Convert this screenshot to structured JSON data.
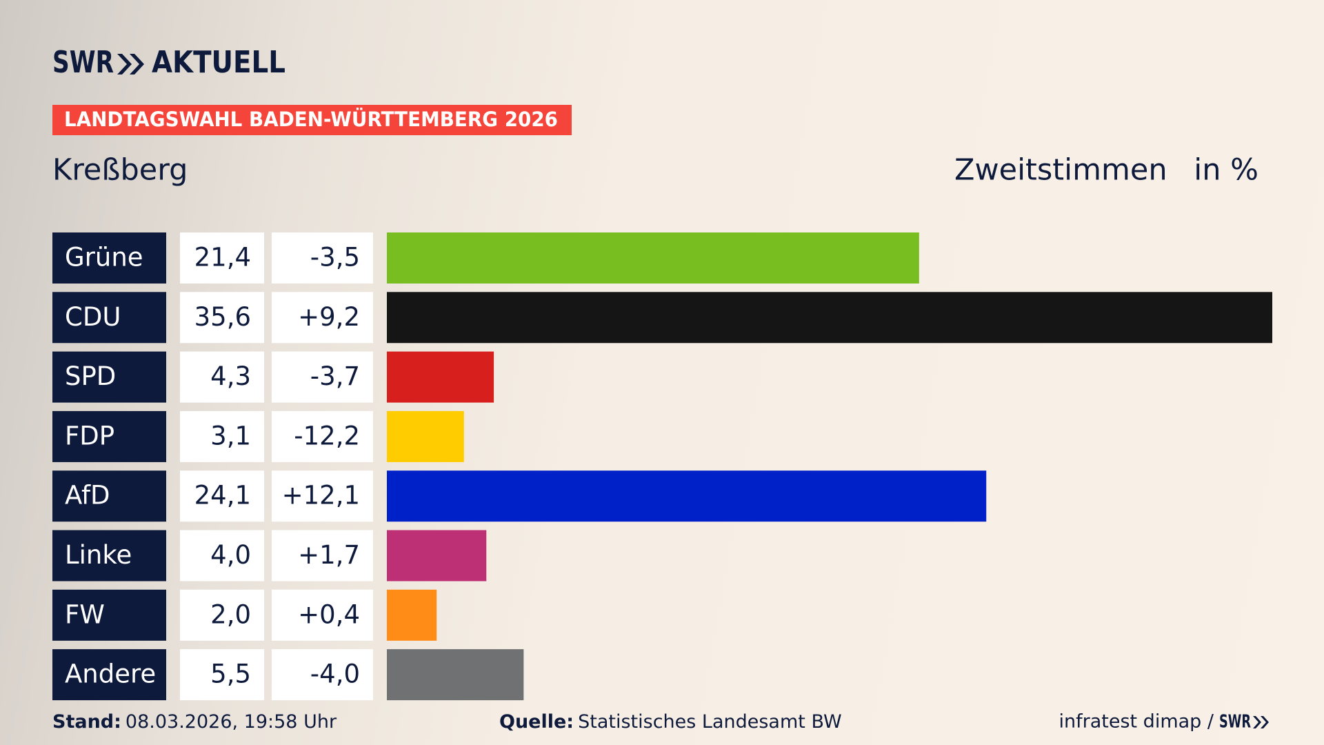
{
  "chart_data": {
    "type": "bar",
    "brand": "SWR",
    "brand_sub": "AKTUELL",
    "banner": "LANDTAGSWAHL BADEN-WÜRTTEMBERG 2026",
    "title": "Kreßberg",
    "subtitle": "Zweitstimmen",
    "unit": "in %",
    "categories": [
      "Grüne",
      "CDU",
      "SPD",
      "FDP",
      "AfD",
      "Linke",
      "FW",
      "Andere"
    ],
    "values": [
      21.4,
      35.6,
      4.3,
      3.1,
      24.1,
      4.0,
      2.0,
      5.5
    ],
    "value_labels": [
      "21,4",
      "35,6",
      "4,3",
      "3,1",
      "24,1",
      "4,0",
      "2,0",
      "5,5"
    ],
    "changes": [
      "-3,5",
      "+9,2",
      "-3,7",
      "-12,2",
      "+12,1",
      "+1,7",
      "+0,4",
      "-4,0"
    ],
    "colors": [
      "#78be20",
      "#151515",
      "#d71f1d",
      "#ffcc00",
      "#0021c8",
      "#be3075",
      "#ff8c17",
      "#707173"
    ],
    "stand_label": "Stand:",
    "stand": "08.03.2026, 19:58 Uhr",
    "source_label": "Quelle:",
    "source": "Statistisches Landesamt BW",
    "credit": "infratest dimap /",
    "credit_brand": "SWR"
  }
}
